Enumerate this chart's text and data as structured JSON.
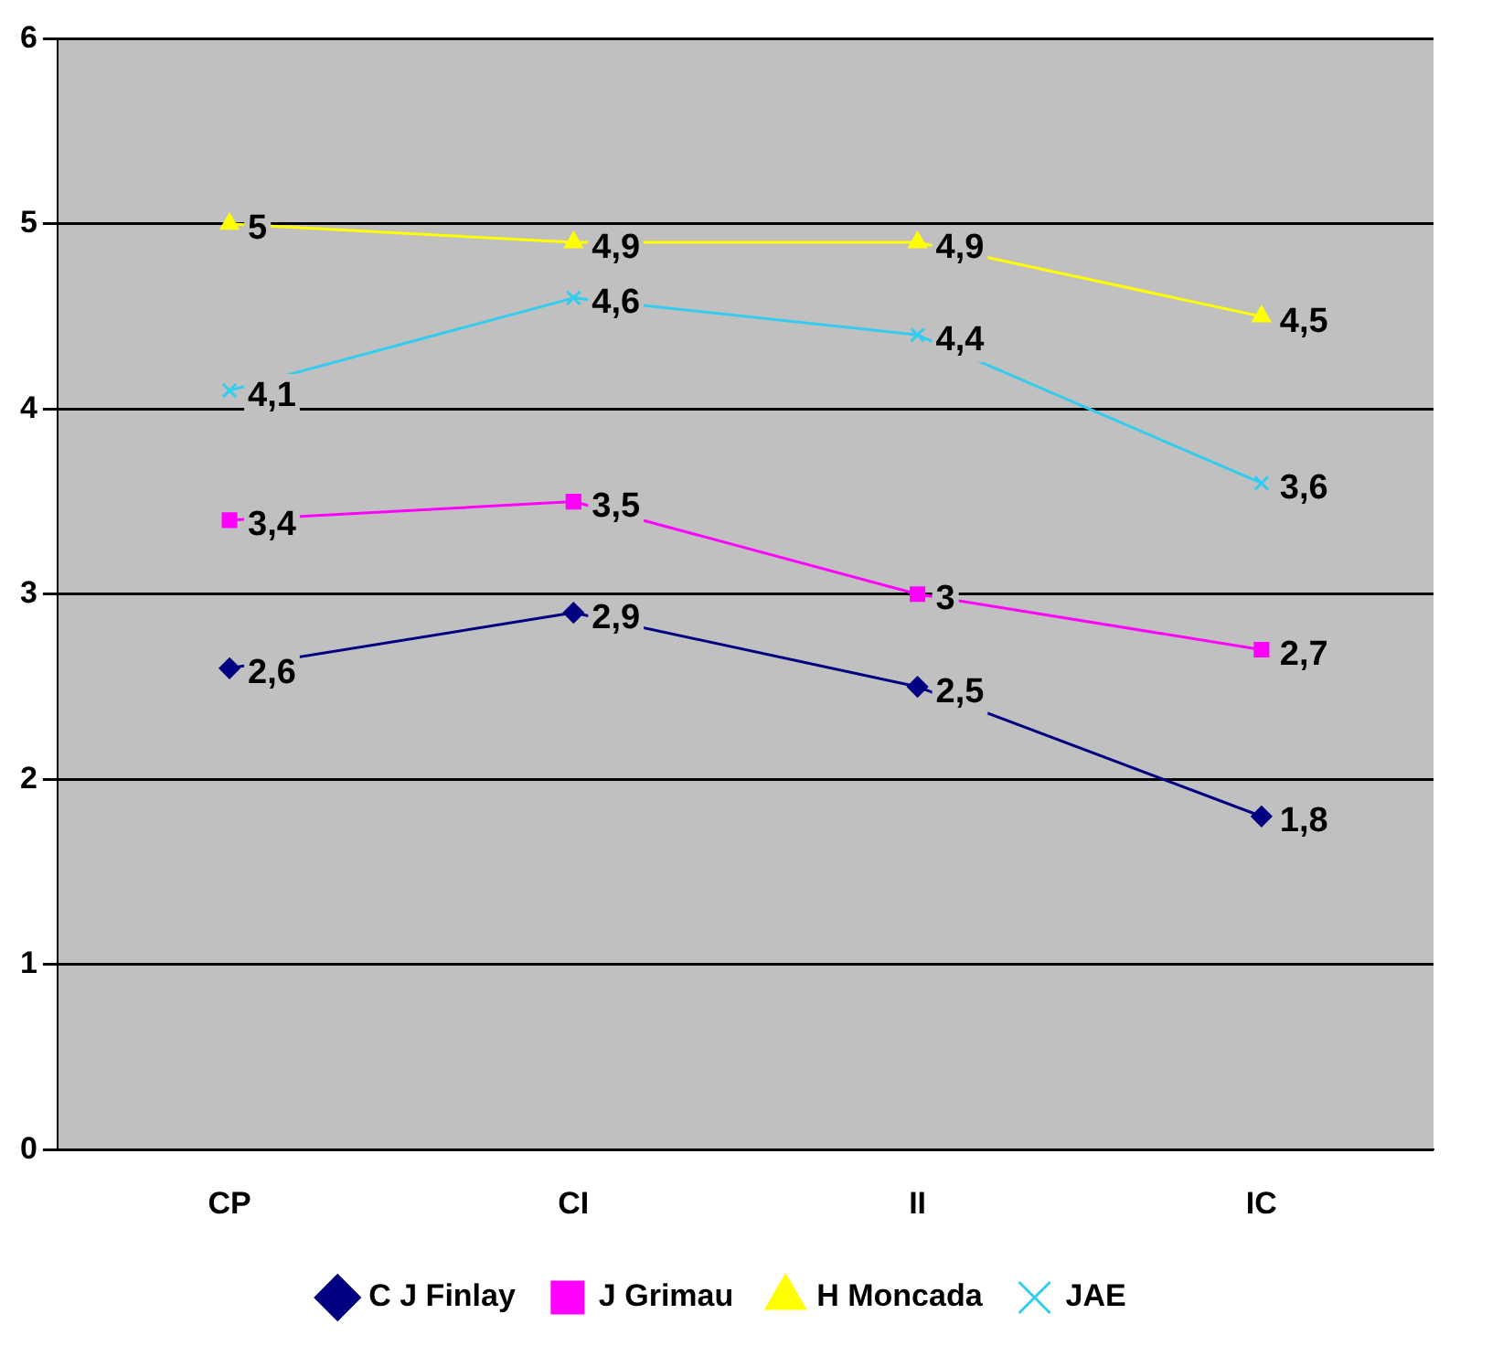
{
  "chart_data": {
    "type": "line",
    "categories": [
      "CP",
      "CI",
      "II",
      "IC"
    ],
    "ylim": [
      0,
      6
    ],
    "yticks": [
      0,
      1,
      2,
      3,
      4,
      5,
      6
    ],
    "grid": "y",
    "legend": "bottom",
    "series": [
      {
        "name": "C J Finlay",
        "color": "#000080",
        "marker": "diamond",
        "values": [
          2.6,
          2.9,
          2.5,
          1.8
        ],
        "value_labels": [
          "2,6",
          "2,9",
          "2,5",
          "1,8"
        ]
      },
      {
        "name": "J Grimau",
        "color": "#ff00ff",
        "marker": "square",
        "values": [
          3.4,
          3.5,
          3,
          2.7
        ],
        "value_labels": [
          "3,4",
          "3,5",
          "3",
          "2,7"
        ]
      },
      {
        "name": "H Moncada",
        "color": "#ffff00",
        "marker": "triangle",
        "values": [
          5,
          4.9,
          4.9,
          4.5
        ],
        "value_labels": [
          "5",
          "4,9",
          "4,9",
          "4,5"
        ]
      },
      {
        "name": "JAE",
        "color": "#33ccee",
        "marker": "cross",
        "values": [
          4.1,
          4.6,
          4.4,
          3.6
        ],
        "value_labels": [
          "4,1",
          "4,6",
          "4,4",
          "3,6"
        ]
      }
    ]
  }
}
